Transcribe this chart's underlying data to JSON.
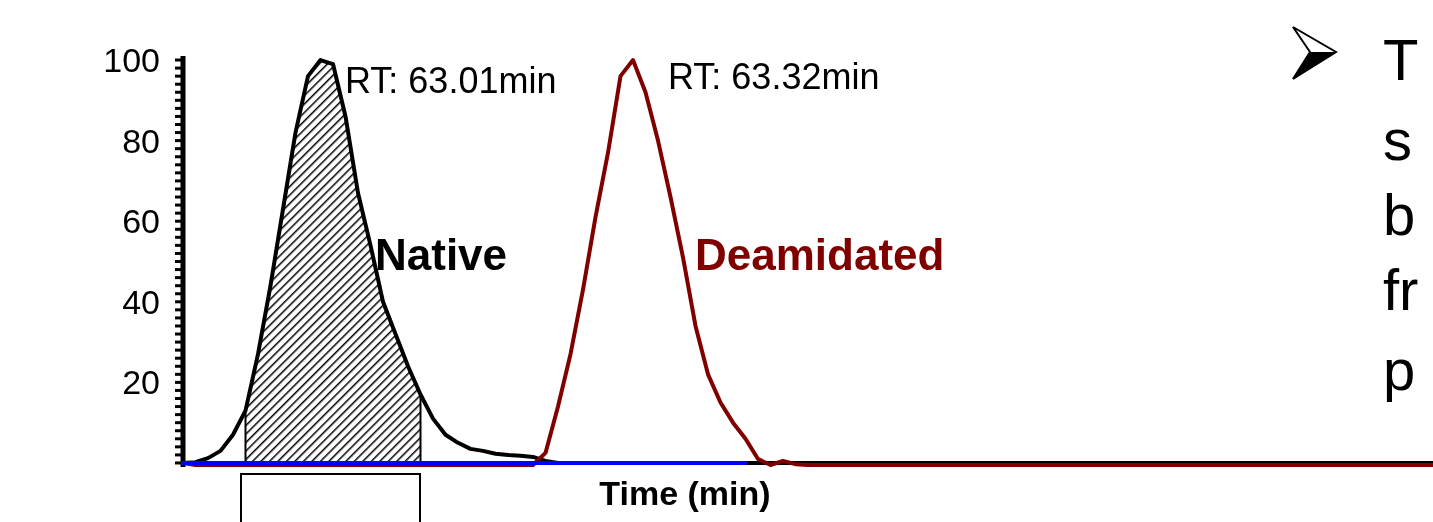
{
  "chart_data": {
    "type": "line",
    "xlabel": "Time (min)",
    "categories": [
      null,
      null,
      null,
      null,
      null,
      null,
      null,
      null,
      null,
      null,
      null,
      null,
      null,
      null,
      null,
      null,
      null,
      null,
      null,
      null,
      null,
      null,
      null,
      null,
      null,
      null,
      null,
      null,
      null,
      null,
      null,
      null,
      null,
      null,
      null,
      null,
      null,
      null,
      null,
      null,
      null,
      null,
      null,
      null,
      null,
      null,
      null,
      null,
      null,
      null,
      null,
      null,
      null,
      null,
      null,
      null,
      null,
      null,
      null,
      null,
      null,
      null,
      null,
      null,
      null,
      null,
      null,
      null,
      null,
      null,
      null,
      null,
      null,
      null,
      null,
      null,
      null,
      null,
      null,
      null,
      null,
      null,
      null,
      null,
      null,
      null,
      null,
      null,
      null,
      null,
      null,
      null,
      null,
      null,
      null,
      null,
      null,
      null,
      null,
      null,
      null
    ],
    "ylim": [
      -1,
      101
    ],
    "yticks": [
      {
        "value": 0,
        "label": null
      },
      {
        "value": 2,
        "label": null
      },
      {
        "value": 4,
        "label": null
      },
      {
        "value": 6,
        "label": null
      },
      {
        "value": 8,
        "label": null
      },
      {
        "value": 10,
        "label": null
      },
      {
        "value": 12,
        "label": null
      },
      {
        "value": 14,
        "label": null
      },
      {
        "value": 16,
        "label": null
      },
      {
        "value": 18,
        "label": null
      },
      20,
      {
        "value": 22,
        "label": null
      },
      {
        "value": 24,
        "label": null
      },
      {
        "value": 26,
        "label": null
      },
      {
        "value": 28,
        "label": null
      },
      {
        "value": 30,
        "label": null
      },
      {
        "value": 32,
        "label": null
      },
      {
        "value": 34,
        "label": null
      },
      {
        "value": 36,
        "label": null
      },
      {
        "value": 38,
        "label": null
      },
      40,
      {
        "value": 42,
        "label": null
      },
      {
        "value": 44,
        "label": null
      },
      {
        "value": 46,
        "label": null
      },
      {
        "value": 48,
        "label": null
      },
      {
        "value": 50,
        "label": null
      },
      {
        "value": 52,
        "label": null
      },
      {
        "value": 54,
        "label": null
      },
      {
        "value": 56,
        "label": null
      },
      {
        "value": 58,
        "label": null
      },
      60,
      {
        "value": 62,
        "label": null
      },
      {
        "value": 64,
        "label": null
      },
      {
        "value": 66,
        "label": null
      },
      {
        "value": 68,
        "label": null
      },
      {
        "value": 70,
        "label": null
      },
      {
        "value": 72,
        "label": null
      },
      {
        "value": 74,
        "label": null
      },
      {
        "value": 76,
        "label": null
      },
      {
        "value": 78,
        "label": null
      },
      80,
      {
        "value": 82,
        "label": null
      },
      {
        "value": 84,
        "label": null
      },
      {
        "value": 86,
        "label": null
      },
      {
        "value": 88,
        "label": null
      },
      {
        "value": 90,
        "label": null
      },
      {
        "value": 92,
        "label": null
      },
      {
        "value": 94,
        "label": null
      },
      {
        "value": 96,
        "label": null
      },
      {
        "value": 98,
        "label": null
      },
      100
    ],
    "tick_labels": "y",
    "legend": false,
    "grid": false,
    "annotations": [
      "RT: 63.01min",
      "RT: 63.32min",
      "T",
      "s",
      "b",
      "fr",
      "p"
    ],
    "series": [
      {
        "type": "area",
        "color": "#000000",
        "values": [
          null,
          null,
          null,
          null,
          null,
          13,
          27,
          44,
          63,
          82,
          96,
          100,
          99,
          86,
          67,
          54,
          40,
          32,
          24,
          17,
          null,
          null,
          null,
          null,
          null,
          null,
          null,
          null,
          null,
          null,
          null,
          null,
          null,
          null,
          null,
          null,
          null,
          null,
          null,
          null,
          null,
          null,
          null,
          null,
          null,
          null,
          null,
          null,
          null,
          null,
          null,
          null,
          null,
          null,
          null,
          null,
          null,
          null,
          null,
          null,
          null,
          null,
          null,
          null,
          null,
          null,
          null,
          null,
          null,
          null,
          null,
          null,
          null,
          null,
          null,
          null,
          null,
          null,
          null,
          null,
          null,
          null,
          null,
          null,
          null,
          null,
          null,
          null,
          null,
          null,
          null,
          null,
          null,
          null,
          null,
          null,
          null,
          null,
          null,
          null,
          null
        ]
      },
      {
        "name": "Native",
        "color": "#000000",
        "values": [
          0,
          0.2,
          1.2,
          3,
          7,
          13,
          27,
          44,
          63,
          82,
          96,
          100,
          99,
          86,
          67,
          54,
          40,
          32,
          24,
          17,
          11,
          7,
          5,
          3.5,
          3,
          2.3,
          2,
          1.8,
          1.5,
          0.5,
          0,
          0,
          0,
          0,
          0,
          0,
          0,
          0,
          0,
          0,
          0,
          0,
          0,
          0,
          0,
          0,
          0,
          0,
          0,
          0,
          0,
          0,
          0,
          0,
          0,
          0,
          0,
          0,
          0,
          0,
          0,
          0,
          0,
          0,
          0,
          0,
          0,
          0,
          0,
          0,
          0,
          0,
          0,
          0,
          0,
          0,
          0,
          0,
          0,
          0,
          0,
          0,
          0,
          0,
          0,
          0,
          0,
          0,
          0,
          0,
          0,
          0,
          0,
          0,
          0,
          0,
          0,
          0,
          0,
          0,
          0
        ]
      },
      {
        "name": "Deamidated",
        "color": "#800000",
        "values": [
          0,
          -0.5,
          -0.5,
          -0.5,
          -0.5,
          -0.5,
          -0.5,
          -0.5,
          -0.5,
          -0.5,
          -0.5,
          -0.5,
          -0.5,
          -0.5,
          -0.5,
          -0.5,
          -0.5,
          -0.5,
          -0.5,
          -0.5,
          -0.5,
          -0.5,
          -0.5,
          -0.5,
          -0.5,
          -0.5,
          -0.5,
          -0.5,
          -0.5,
          2.5,
          14,
          27,
          43,
          61,
          77,
          96,
          100,
          92,
          80,
          66,
          51,
          34,
          22,
          15,
          10,
          6,
          1,
          -0.5,
          0.5,
          -0.3,
          -0.5,
          -0.5,
          -0.5,
          -0.5,
          -0.5,
          -0.5,
          -0.5,
          -0.5,
          -0.5,
          -0.5,
          -0.5,
          -0.5,
          -0.5,
          -0.5,
          -0.5,
          -0.5,
          -0.5,
          -0.5,
          -0.5,
          -0.5,
          -0.5,
          -0.5,
          -0.5,
          -0.5,
          -0.5,
          -0.5,
          -0.5,
          -0.5,
          -0.5,
          -0.5,
          -0.5,
          -0.5,
          -0.5,
          -0.5,
          -0.5,
          -0.5,
          -0.5,
          -0.5,
          -0.5,
          -0.5,
          -0.5,
          -0.5,
          -0.5,
          -0.5,
          -0.5,
          -0.5,
          -0.5,
          -0.5,
          -0.5,
          -0.5,
          -0.5
        ]
      },
      {
        "color": "#0000ff",
        "values": [
          0,
          0,
          0,
          0,
          0,
          0,
          0,
          0,
          0,
          0,
          0,
          0,
          0,
          0,
          0,
          0,
          0,
          0,
          0,
          0,
          0,
          0,
          0,
          0,
          0,
          0,
          0,
          0,
          0,
          0,
          0,
          0,
          0,
          0,
          0,
          0,
          0,
          0,
          0,
          0,
          0,
          0,
          0,
          0,
          0,
          0,
          null,
          null,
          null,
          null,
          null,
          null,
          null,
          null,
          null,
          null,
          null,
          null,
          null,
          null,
          null,
          null,
          null,
          null,
          null,
          null,
          null,
          null,
          null,
          null,
          null,
          null,
          null,
          null,
          null,
          null,
          null,
          null,
          null,
          null,
          null,
          null,
          null,
          null,
          null,
          null,
          null,
          null,
          null,
          null,
          null,
          null,
          null,
          null,
          null,
          null,
          null,
          null,
          null,
          null,
          null
        ]
      }
    ]
  }
}
